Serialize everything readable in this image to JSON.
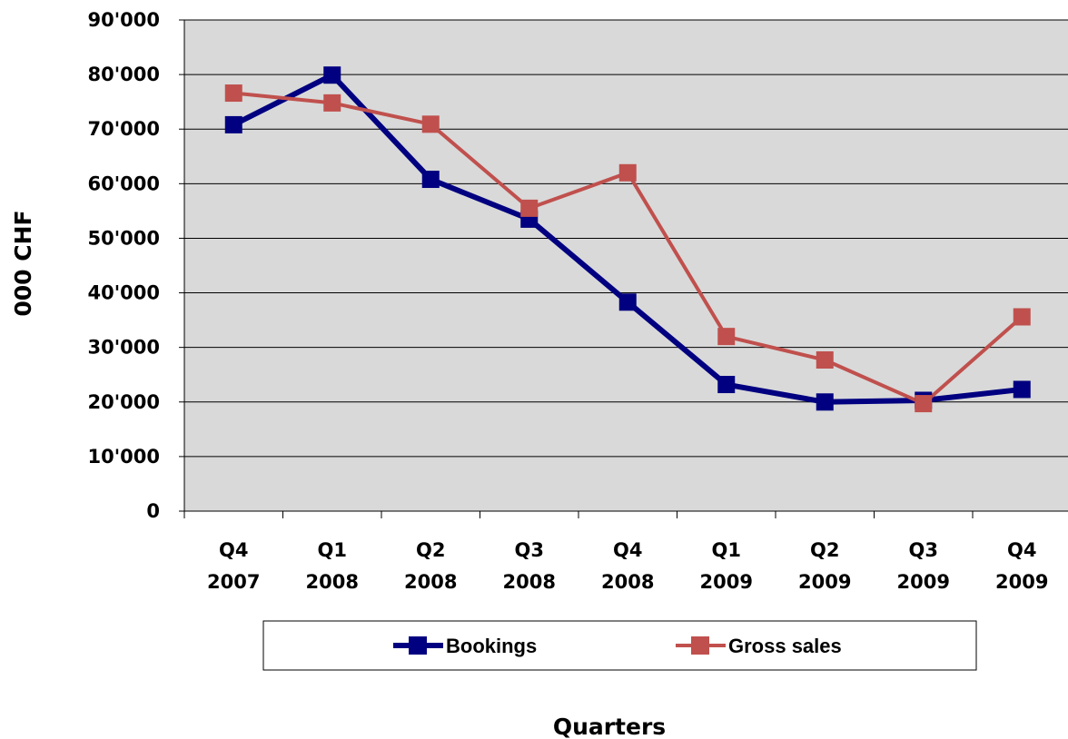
{
  "chart_data": {
    "type": "line",
    "title": "",
    "xlabel": "Quarters",
    "ylabel": "000 CHF",
    "categories": [
      [
        "Q4",
        "2007"
      ],
      [
        "Q1",
        "2008"
      ],
      [
        "Q2",
        "2008"
      ],
      [
        "Q3",
        "2008"
      ],
      [
        "Q4",
        "2008"
      ],
      [
        "Q1",
        "2009"
      ],
      [
        "Q2",
        "2009"
      ],
      [
        "Q3",
        "2009"
      ],
      [
        "Q4",
        "2009"
      ]
    ],
    "y_ticks": [
      "0",
      "10'000",
      "20'000",
      "30'000",
      "40'000",
      "50'000",
      "60'000",
      "70'000",
      "80'000",
      "90'000"
    ],
    "ylim": [
      0,
      90000
    ],
    "grid": true,
    "legend_position": "bottom",
    "series": [
      {
        "name": "Bookings",
        "color": "#000080",
        "marker": "square",
        "values": [
          70800,
          79900,
          60800,
          53500,
          38300,
          23200,
          20000,
          20300,
          22300
        ]
      },
      {
        "name": "Gross sales",
        "color": "#C0504D",
        "marker": "square",
        "values": [
          76600,
          74800,
          70900,
          55500,
          62000,
          32000,
          27700,
          19700,
          35600
        ]
      }
    ]
  }
}
